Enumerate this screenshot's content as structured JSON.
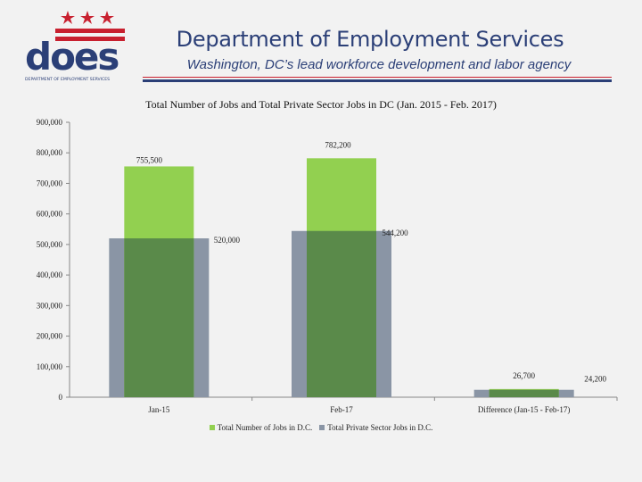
{
  "header": {
    "title": "Department of Employment Services",
    "subtitle": "Washington, DC’s lead workforce development and labor agency",
    "logo_text": "does",
    "logo_caption": "DEPARTMENT OF EMPLOYMENT SERVICES"
  },
  "colors": {
    "brand_blue": "#2b3f77",
    "brand_red": "#c8202f",
    "total_jobs": "#92d050",
    "private_jobs": "#8a95a5",
    "overlap": "#5a8a4a"
  },
  "chart_data": {
    "type": "bar",
    "title": "Total Number of Jobs and Total Private Sector Jobs in DC (Jan. 2015 - Feb. 2017)",
    "categories": [
      "Jan-15",
      "Feb-17",
      "Difference (Jan-15 - Feb-17)"
    ],
    "series": [
      {
        "name": "Total Number of Jobs in D.C.",
        "values": [
          755500,
          782200,
          26700
        ],
        "labels": [
          "755,500",
          "782,200",
          "26,700"
        ]
      },
      {
        "name": "Total Private Sector Jobs in D.C.",
        "values": [
          520000,
          544200,
          24200
        ],
        "labels": [
          "520,000",
          "544,200",
          "24,200"
        ]
      }
    ],
    "yticks": [
      "0",
      "100,000",
      "200,000",
      "300,000",
      "400,000",
      "500,000",
      "600,000",
      "700,000",
      "800,000",
      "900,000"
    ],
    "ylim": [
      0,
      900000
    ],
    "grid": false,
    "legend_position": "bottom"
  }
}
